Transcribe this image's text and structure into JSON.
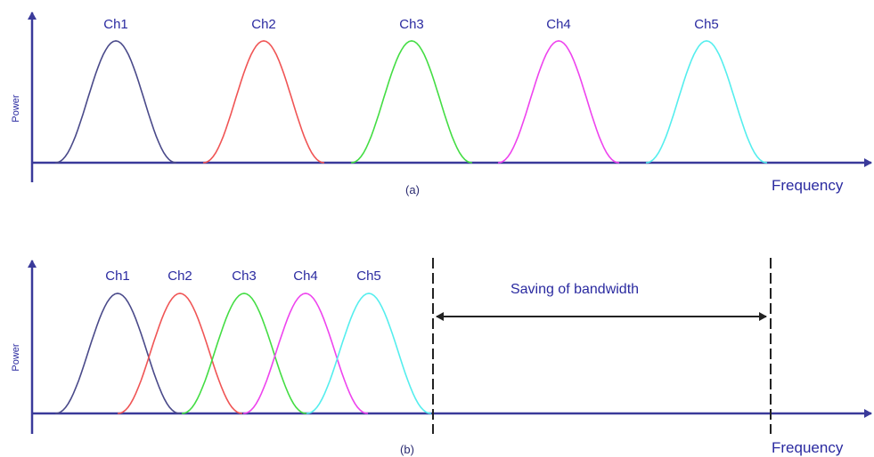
{
  "panel_a": {
    "y_label": "Power",
    "x_label": "Frequency",
    "caption": "(a)",
    "channels": [
      {
        "label": "Ch1",
        "color": "#4a4a8a"
      },
      {
        "label": "Ch2",
        "color": "#f05555"
      },
      {
        "label": "Ch3",
        "color": "#44dd44"
      },
      {
        "label": "Ch4",
        "color": "#ee44ee"
      },
      {
        "label": "Ch5",
        "color": "#55eeee"
      }
    ]
  },
  "panel_b": {
    "y_label": "Power",
    "x_label": "Frequency",
    "caption": "(b)",
    "saving_label": "Saving of bandwidth",
    "channels": [
      {
        "label": "Ch1",
        "color": "#4a4a8a"
      },
      {
        "label": "Ch2",
        "color": "#f05555"
      },
      {
        "label": "Ch3",
        "color": "#44dd44"
      },
      {
        "label": "Ch4",
        "color": "#ee44ee"
      },
      {
        "label": "Ch5",
        "color": "#55eeee"
      }
    ]
  },
  "colors": {
    "axis": "#3a3a9a",
    "text": "#2a2aa0",
    "divider": "#222222"
  }
}
